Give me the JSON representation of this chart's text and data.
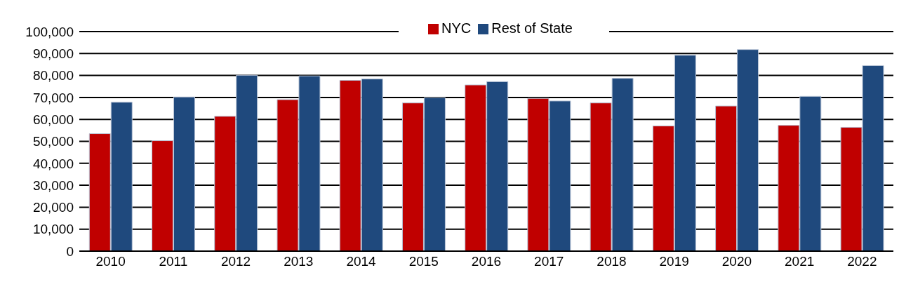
{
  "chart_data": {
    "type": "bar",
    "categories": [
      "2010",
      "2011",
      "2012",
      "2013",
      "2014",
      "2015",
      "2016",
      "2017",
      "2018",
      "2019",
      "2020",
      "2021",
      "2022"
    ],
    "series": [
      {
        "name": "NYC",
        "color": "#c00000",
        "values": [
          53500,
          50300,
          61400,
          69000,
          77800,
          67500,
          75700,
          69600,
          67500,
          57000,
          66100,
          57300,
          56400
        ]
      },
      {
        "name": "Rest of State",
        "color": "#1f497d",
        "values": [
          67800,
          70200,
          80100,
          79800,
          78400,
          69900,
          77200,
          68400,
          78700,
          89200,
          91800,
          70500,
          84500
        ]
      }
    ],
    "ylim": [
      0,
      100000
    ],
    "yticks": [
      {
        "value": 0,
        "label": "0"
      },
      {
        "value": 10000,
        "label": "10,000"
      },
      {
        "value": 20000,
        "label": "20,000"
      },
      {
        "value": 30000,
        "label": "30,000"
      },
      {
        "value": 40000,
        "label": "40,000"
      },
      {
        "value": 50000,
        "label": "50,000"
      },
      {
        "value": 60000,
        "label": "60,000"
      },
      {
        "value": 70000,
        "label": "70,000"
      },
      {
        "value": 80000,
        "label": "80,000"
      },
      {
        "value": 90000,
        "label": "90,000"
      },
      {
        "value": 100000,
        "label": "100,000"
      }
    ],
    "grid": "y",
    "legend": "top"
  }
}
